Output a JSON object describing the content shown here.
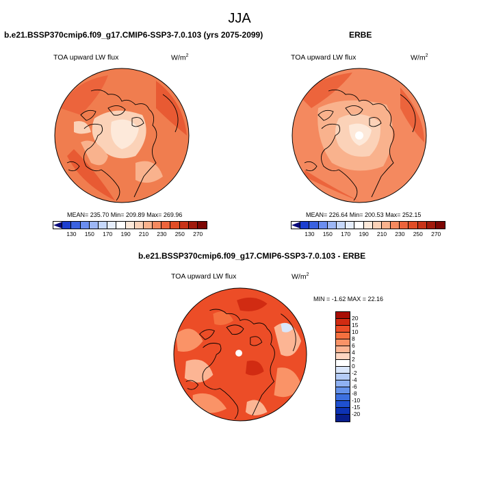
{
  "season": "JJA",
  "panels": {
    "model": {
      "title": "b.e21.BSSP370cmip6.f09_g17.CMIP6-SSP3-7.0.103 (yrs 2075-2099)",
      "variable": "TOA upward LW flux",
      "units_base": "W/m",
      "units_exp": "2",
      "stats": "MEAN= 235.70  Min= 209.89  Max= 269.96"
    },
    "obs": {
      "title": "ERBE",
      "variable": "TOA upward LW flux",
      "units_base": "W/m",
      "units_exp": "2",
      "stats": "MEAN= 226.64  Min= 200.53  Max= 252.15"
    },
    "diff": {
      "title": "b.e21.BSSP370cmip6.f09_g17.CMIP6-SSP3-7.0.103 - ERBE",
      "variable": "TOA upward LW flux",
      "units_base": "W/m",
      "units_exp": "2",
      "stats": "MIN =  -1.62 MAX =  22.16"
    }
  },
  "colorbars": {
    "abs": {
      "colors": [
        "#08087a",
        "#1c3fcf",
        "#3a62e0",
        "#6b8ef0",
        "#9db7f5",
        "#c6d8fb",
        "#e6eefc",
        "#ffffff",
        "#fde9da",
        "#fbd2b8",
        "#f9b28d",
        "#f4895f",
        "#ec643c",
        "#e04d26",
        "#c83318",
        "#a11a0c",
        "#7c0704"
      ],
      "labels": [
        "130",
        "150",
        "170",
        "190",
        "210",
        "230",
        "250",
        "270"
      ]
    },
    "diff": {
      "colors": [
        "#a80e05",
        "#d12b12",
        "#ec4d27",
        "#f5703f",
        "#fa9367",
        "#fcb594",
        "#fed6c2",
        "#ffffff",
        "#d9e6fb",
        "#b4ccf7",
        "#8fb1f2",
        "#6592ea",
        "#3d70e0",
        "#1f50d0",
        "#0d33b5",
        "#081e8c"
      ],
      "labels": [
        "20",
        "15",
        "10",
        "8",
        "6",
        "4",
        "2",
        "0",
        "-2",
        "-4",
        "-6",
        "-8",
        "-10",
        "-15",
        "-20"
      ]
    }
  }
}
